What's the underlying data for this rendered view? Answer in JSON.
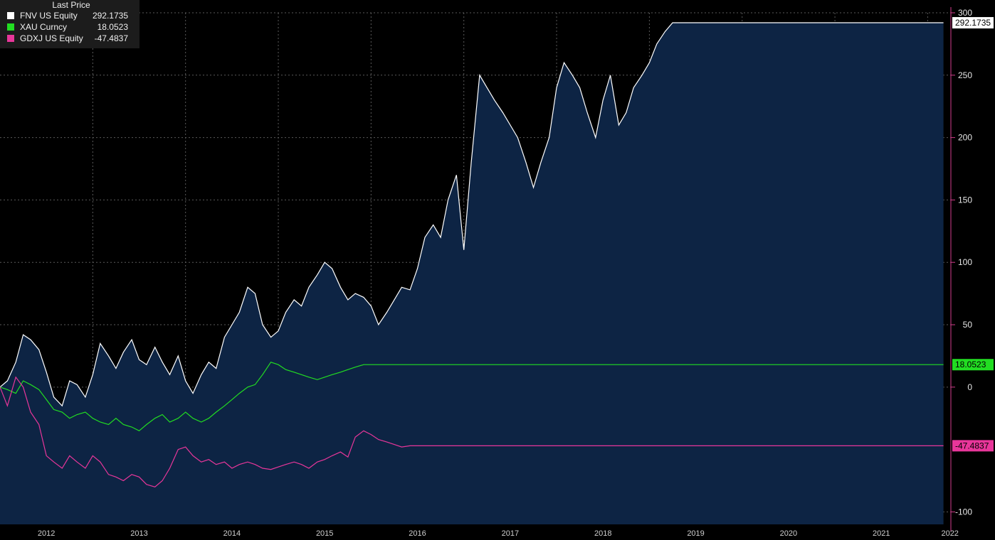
{
  "legend": {
    "title": "Last Price",
    "items": [
      {
        "name": "FNV US Equity",
        "value": "292.1735",
        "color": "#ffffff"
      },
      {
        "name": "XAU Curncy",
        "value": "18.0523",
        "color": "#22dd22"
      },
      {
        "name": "GDXJ US Equity",
        "value": "-47.4837",
        "color": "#e8369a"
      }
    ]
  },
  "chart_data": {
    "type": "line",
    "x": [
      2012.0,
      2012.08,
      2012.17,
      2012.25,
      2012.33,
      2012.42,
      2012.5,
      2012.58,
      2012.67,
      2012.75,
      2012.83,
      2012.92,
      2013.0,
      2013.08,
      2013.17,
      2013.25,
      2013.33,
      2013.42,
      2013.5,
      2013.58,
      2013.67,
      2013.75,
      2013.83,
      2013.92,
      2014.0,
      2014.08,
      2014.17,
      2014.25,
      2014.33,
      2014.42,
      2014.5,
      2014.58,
      2014.67,
      2014.75,
      2014.83,
      2014.92,
      2015.0,
      2015.08,
      2015.17,
      2015.25,
      2015.33,
      2015.42,
      2015.5,
      2015.58,
      2015.67,
      2015.75,
      2015.83,
      2015.92,
      2016.0,
      2016.08,
      2016.17,
      2016.25,
      2016.33,
      2016.42,
      2016.5,
      2016.58,
      2016.67,
      2016.75,
      2016.83,
      2016.92,
      2017.0,
      2017.08,
      2017.17,
      2017.25,
      2017.33,
      2017.42,
      2017.5,
      2017.58,
      2017.67,
      2017.75,
      2017.83,
      2017.92,
      2018.0,
      2018.08,
      2018.17,
      2018.25,
      2018.33,
      2018.42,
      2018.5,
      2018.58,
      2018.67,
      2018.75,
      2018.83,
      2018.92,
      2019.0,
      2019.08,
      2019.17,
      2019.25,
      2019.33,
      2019.42,
      2019.5,
      2019.58,
      2019.67,
      2019.75,
      2019.83,
      2019.92,
      2020.0,
      2020.08,
      2020.17,
      2020.25,
      2020.33,
      2020.42,
      2020.5,
      2020.58,
      2020.67,
      2020.75,
      2020.83,
      2020.92,
      2021.0,
      2021.08,
      2021.17,
      2021.25,
      2021.33,
      2021.42,
      2021.5,
      2021.58,
      2021.67,
      2021.75,
      2021.83,
      2021.92,
      2022.0,
      2022.08,
      2022.17
    ],
    "series": [
      {
        "name": "FNV US Equity",
        "color": "#ffffff",
        "fill": "#0d2444",
        "values": [
          0,
          5,
          20,
          42,
          38,
          30,
          12,
          -8,
          -15,
          5,
          2,
          -8,
          10,
          35,
          25,
          15,
          28,
          38,
          22,
          18,
          32,
          20,
          10,
          25,
          5,
          -5,
          10,
          20,
          15,
          40,
          50,
          60,
          80,
          75,
          50,
          40,
          45,
          60,
          70,
          65,
          80,
          90,
          100,
          95,
          80,
          70,
          75,
          72,
          65,
          50,
          60,
          70,
          80,
          78,
          95,
          120,
          130,
          120,
          150,
          170,
          110,
          180,
          250,
          240,
          230,
          220,
          210,
          200,
          180,
          160,
          180,
          200,
          240,
          260,
          250,
          240,
          220,
          200,
          230,
          250,
          210,
          220,
          240,
          250,
          260,
          275,
          285,
          292,
          292,
          292,
          292,
          292,
          292,
          292,
          292,
          292,
          292,
          292,
          292,
          292,
          292,
          292,
          292,
          292,
          292,
          292,
          292,
          292,
          292,
          292,
          292,
          292,
          292,
          292,
          292,
          292,
          292,
          292,
          292,
          292,
          292,
          292,
          292
        ]
      },
      {
        "name": "XAU Curncy",
        "color": "#22dd22",
        "values": [
          0,
          -2,
          -5,
          5,
          2,
          -2,
          -10,
          -18,
          -20,
          -25,
          -22,
          -20,
          -25,
          -28,
          -30,
          -25,
          -30,
          -32,
          -35,
          -30,
          -25,
          -22,
          -28,
          -25,
          -20,
          -25,
          -28,
          -25,
          -20,
          -15,
          -10,
          -5,
          0,
          2,
          10,
          20,
          18,
          14,
          12,
          10,
          8,
          6,
          8,
          10,
          12,
          14,
          16,
          18,
          18,
          18,
          18,
          18,
          18,
          18,
          18,
          18,
          18,
          18,
          18,
          18,
          18,
          18,
          18,
          18,
          18,
          18,
          18,
          18,
          18,
          18,
          18,
          18,
          18,
          18,
          18,
          18,
          18,
          18,
          18,
          18,
          18,
          18,
          18,
          18,
          18,
          18,
          18,
          18,
          18,
          18,
          18,
          18,
          18,
          18,
          18,
          18,
          18,
          18,
          18,
          18,
          18,
          18,
          18,
          18,
          18,
          18,
          18,
          18,
          18,
          18,
          18,
          18,
          18,
          18,
          18,
          18,
          18,
          18,
          18,
          18,
          18,
          18,
          18
        ]
      },
      {
        "name": "GDXJ US Equity",
        "color": "#e8369a",
        "values": [
          0,
          -15,
          8,
          0,
          -20,
          -30,
          -55,
          -60,
          -65,
          -55,
          -60,
          -65,
          -55,
          -60,
          -70,
          -72,
          -75,
          -70,
          -72,
          -78,
          -80,
          -75,
          -65,
          -50,
          -48,
          -55,
          -60,
          -58,
          -62,
          -60,
          -65,
          -62,
          -60,
          -62,
          -65,
          -66,
          -64,
          -62,
          -60,
          -62,
          -65,
          -60,
          -58,
          -55,
          -52,
          -56,
          -40,
          -35,
          -38,
          -42,
          -44,
          -46,
          -48,
          -47,
          -47,
          -47,
          -47,
          -47,
          -47,
          -47,
          -47,
          -47,
          -47,
          -47,
          -47,
          -47,
          -47,
          -47,
          -47,
          -47,
          -47,
          -47,
          -47,
          -47,
          -47,
          -47,
          -47,
          -47,
          -47,
          -47,
          -47,
          -47,
          -47,
          -47,
          -47,
          -47,
          -47,
          -47,
          -47,
          -47,
          -47,
          -47,
          -47,
          -47,
          -47,
          -47,
          -47,
          -47,
          -47,
          -47,
          -47,
          -47,
          -47,
          -47,
          -47,
          -47,
          -47,
          -47,
          -47,
          -47,
          -47,
          -47,
          -47,
          -47,
          -47,
          -47,
          -47,
          -47,
          -47,
          -47,
          -47,
          -47,
          -47
        ]
      }
    ],
    "ylim": [
      -110,
      300
    ],
    "y_ticks": [
      300,
      250,
      200,
      150,
      100,
      50,
      0,
      -100
    ],
    "x_ticks": [
      "2012",
      "2013",
      "2014",
      "2015",
      "2016",
      "2017",
      "2018",
      "2019",
      "2020",
      "2021",
      "2022"
    ],
    "grid": true,
    "legend_position": "top-left",
    "axis_position": "right",
    "axis_color": "#d23c8c"
  }
}
